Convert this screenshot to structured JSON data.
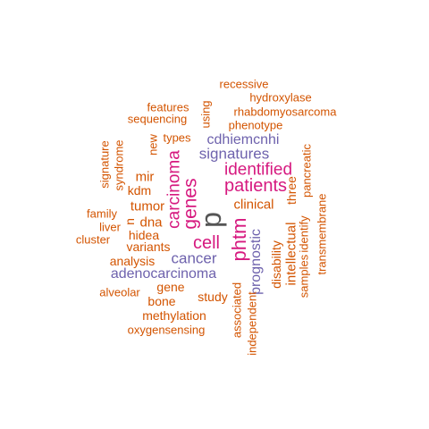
{
  "colors": {
    "gray": "#555555",
    "pink": "#d6197f",
    "purple": "#6e62ad",
    "orange": "#d35400"
  },
  "words": [
    {
      "text": "p",
      "color": "gray",
      "vertical": true
    },
    {
      "text": "patients",
      "color": "pink",
      "vertical": false
    },
    {
      "text": "identified",
      "color": "pink",
      "vertical": false
    },
    {
      "text": "genes",
      "color": "pink",
      "vertical": true
    },
    {
      "text": "carcinoma",
      "color": "pink",
      "vertical": true
    },
    {
      "text": "cell",
      "color": "pink",
      "vertical": false
    },
    {
      "text": "phtm",
      "color": "pink",
      "vertical": true
    },
    {
      "text": "signatures",
      "color": "purple",
      "vertical": false
    },
    {
      "text": "cdhiemcnhi",
      "color": "purple",
      "vertical": false
    },
    {
      "text": "cancer",
      "color": "purple",
      "vertical": false
    },
    {
      "text": "adenocarcinoma",
      "color": "purple",
      "vertical": false
    },
    {
      "text": "prognostic",
      "color": "purple",
      "vertical": true
    },
    {
      "text": "recessive",
      "color": "orange",
      "vertical": false
    },
    {
      "text": "hydroxylase",
      "color": "orange",
      "vertical": false
    },
    {
      "text": "features",
      "color": "orange",
      "vertical": false
    },
    {
      "text": "rhabdomyosarcoma",
      "color": "orange",
      "vertical": false
    },
    {
      "text": "sequencing",
      "color": "orange",
      "vertical": false
    },
    {
      "text": "using",
      "color": "orange",
      "vertical": true
    },
    {
      "text": "phenotype",
      "color": "orange",
      "vertical": false
    },
    {
      "text": "types",
      "color": "orange",
      "vertical": false
    },
    {
      "text": "new",
      "color": "orange",
      "vertical": true
    },
    {
      "text": "signature",
      "color": "orange",
      "vertical": true
    },
    {
      "text": "syndrome",
      "color": "orange",
      "vertical": true
    },
    {
      "text": "mir",
      "color": "orange",
      "vertical": false
    },
    {
      "text": "kdm",
      "color": "orange",
      "vertical": false
    },
    {
      "text": "tumor",
      "color": "orange",
      "vertical": false
    },
    {
      "text": "clinical",
      "color": "orange",
      "vertical": false
    },
    {
      "text": "pancreatic",
      "color": "orange",
      "vertical": true
    },
    {
      "text": "three",
      "color": "orange",
      "vertical": true
    },
    {
      "text": "intellectual",
      "color": "orange",
      "vertical": true
    },
    {
      "text": "disability",
      "color": "orange",
      "vertical": true
    },
    {
      "text": "identify",
      "color": "orange",
      "vertical": true
    },
    {
      "text": "transmembrane",
      "color": "orange",
      "vertical": true
    },
    {
      "text": "samples",
      "color": "orange",
      "vertical": true
    },
    {
      "text": "family",
      "color": "orange",
      "vertical": false
    },
    {
      "text": "n",
      "color": "orange",
      "vertical": true
    },
    {
      "text": "dna",
      "color": "orange",
      "vertical": false
    },
    {
      "text": "liver",
      "color": "orange",
      "vertical": false
    },
    {
      "text": "hidea",
      "color": "orange",
      "vertical": false
    },
    {
      "text": "cluster",
      "color": "orange",
      "vertical": false
    },
    {
      "text": "variants",
      "color": "orange",
      "vertical": false
    },
    {
      "text": "analysis",
      "color": "orange",
      "vertical": false
    },
    {
      "text": "gene",
      "color": "orange",
      "vertical": false
    },
    {
      "text": "alveolar",
      "color": "orange",
      "vertical": false
    },
    {
      "text": "bone",
      "color": "orange",
      "vertical": false
    },
    {
      "text": "study",
      "color": "orange",
      "vertical": false
    },
    {
      "text": "associated",
      "color": "orange",
      "vertical": true
    },
    {
      "text": "independent",
      "color": "orange",
      "vertical": true
    },
    {
      "text": "methylation",
      "color": "orange",
      "vertical": false
    },
    {
      "text": "oxygensensing",
      "color": "orange",
      "vertical": false
    }
  ]
}
